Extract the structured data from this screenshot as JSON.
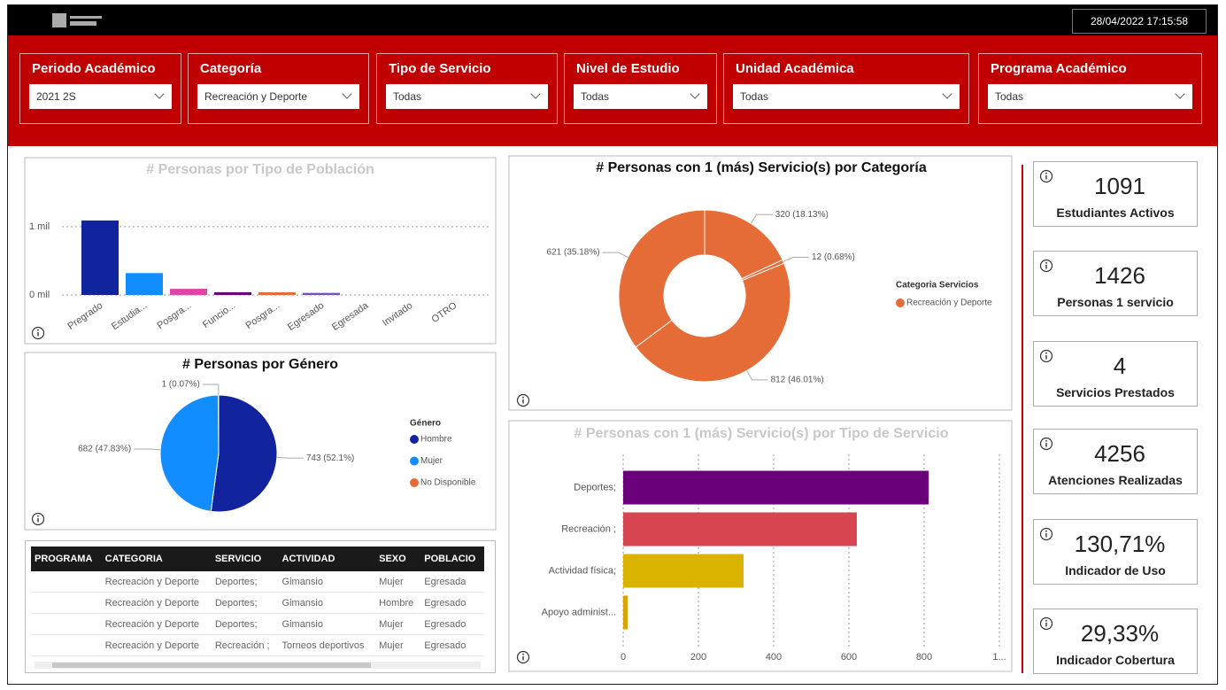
{
  "header": {
    "timestamp": "28/04/2022 17:15:58"
  },
  "filters": [
    {
      "label": "Periodo Académico",
      "value": "2021 2S"
    },
    {
      "label": "Categoría",
      "value": "Recreación y Deporte"
    },
    {
      "label": "Tipo de Servicio",
      "value": "Todas"
    },
    {
      "label": "Nivel de Estudio",
      "value": "Todas"
    },
    {
      "label": "Unidad Académica",
      "value": "Todas"
    },
    {
      "label": "Programa Académico",
      "value": "Todas"
    }
  ],
  "chart_data": [
    {
      "type": "bar",
      "title": "# Personas por Tipo de Población",
      "categories": [
        "Pregrado",
        "Estudia...",
        "Posgra...",
        "Funcio...",
        "Posgra...",
        "Egresado",
        "Egresada",
        "Invitado",
        "OTRO"
      ],
      "values": [
        1090,
        320,
        90,
        40,
        40,
        30,
        0,
        0,
        0
      ],
      "colors": [
        "#12239e",
        "#118dff",
        "#e044a7",
        "#6b007b",
        "#e66c37",
        "#744ec2",
        "#d9b300",
        "#d64550",
        "#197278"
      ],
      "ylim": [
        0,
        1400
      ],
      "yticks": [
        {
          "value": 0,
          "label": "0 mil"
        },
        {
          "value": 1000,
          "label": "1 mil"
        }
      ],
      "grid": true
    },
    {
      "type": "pie",
      "title": "# Personas por Género",
      "legend_title": "Género",
      "categories": [
        "Hombre",
        "Mujer",
        "No Disponible"
      ],
      "values": [
        743,
        682,
        1
      ],
      "value_labels": [
        "743 (52.1%)",
        "682 (47.83%)",
        "1 (0.07%)"
      ],
      "colors": [
        "#12239e",
        "#118dff",
        "#e66c37"
      ]
    },
    {
      "type": "donut",
      "title": "# Personas con 1 (más) Servicio(s) por Categoría",
      "legend_title": "Categoria Servicios",
      "series": [
        {
          "name": "Recreación y Deporte",
          "color": "#e66c37",
          "values": [
            320,
            12,
            812,
            621
          ],
          "value_labels": [
            "320 (18.13%)",
            "12 (0.68%)",
            "812 (46.01%)",
            "621 (35.18%)"
          ]
        }
      ]
    },
    {
      "type": "hbar",
      "title": "# Personas con 1 (más) Servicio(s) por Tipo de Servicio",
      "categories": [
        "Deportes;",
        "Recreación ;",
        "Actividad física;",
        "Apoyo administ..."
      ],
      "values": [
        812,
        621,
        320,
        12
      ],
      "colors": [
        "#6b007b",
        "#d64550",
        "#d9b300",
        "#d9a400"
      ],
      "xlim": [
        0,
        1000
      ],
      "xticks": [
        0,
        200,
        400,
        600,
        800,
        {
          "value": 1000,
          "label": "1..."
        }
      ],
      "grid": true
    }
  ],
  "table": {
    "columns": [
      "PROGRAMA",
      "CATEGORIA",
      "SERVICIO",
      "ACTIVIDAD",
      "SEXO",
      "POBLACIO"
    ],
    "rows": [
      [
        null,
        "Recreación y Deporte",
        "Deportes;",
        "Gimansio",
        "Mujer",
        "Egresada"
      ],
      [
        null,
        "Recreación y Deporte",
        "Deportes;",
        "Gimansio",
        "Hombre",
        "Egresado"
      ],
      [
        null,
        "Recreación y Deporte",
        "Deportes;",
        "Gimansio",
        "Mujer",
        "Egresado"
      ],
      [
        null,
        "Recreación y Deporte",
        "Recreación ;",
        "Torneos deportivos",
        "Mujer",
        "Egresado"
      ]
    ]
  },
  "kpis": [
    {
      "value": 1091,
      "label": "Estudiantes Activos"
    },
    {
      "value": 1426,
      "label": "Personas 1 servicio"
    },
    {
      "value": 4,
      "label": "Servicios Prestados"
    },
    {
      "value": 4256,
      "label": "Atenciones Realizadas"
    },
    {
      "value": "130,71%",
      "label": "Indicador de Uso"
    },
    {
      "value": "29,33%",
      "label": "Indicador Cobertura"
    }
  ]
}
